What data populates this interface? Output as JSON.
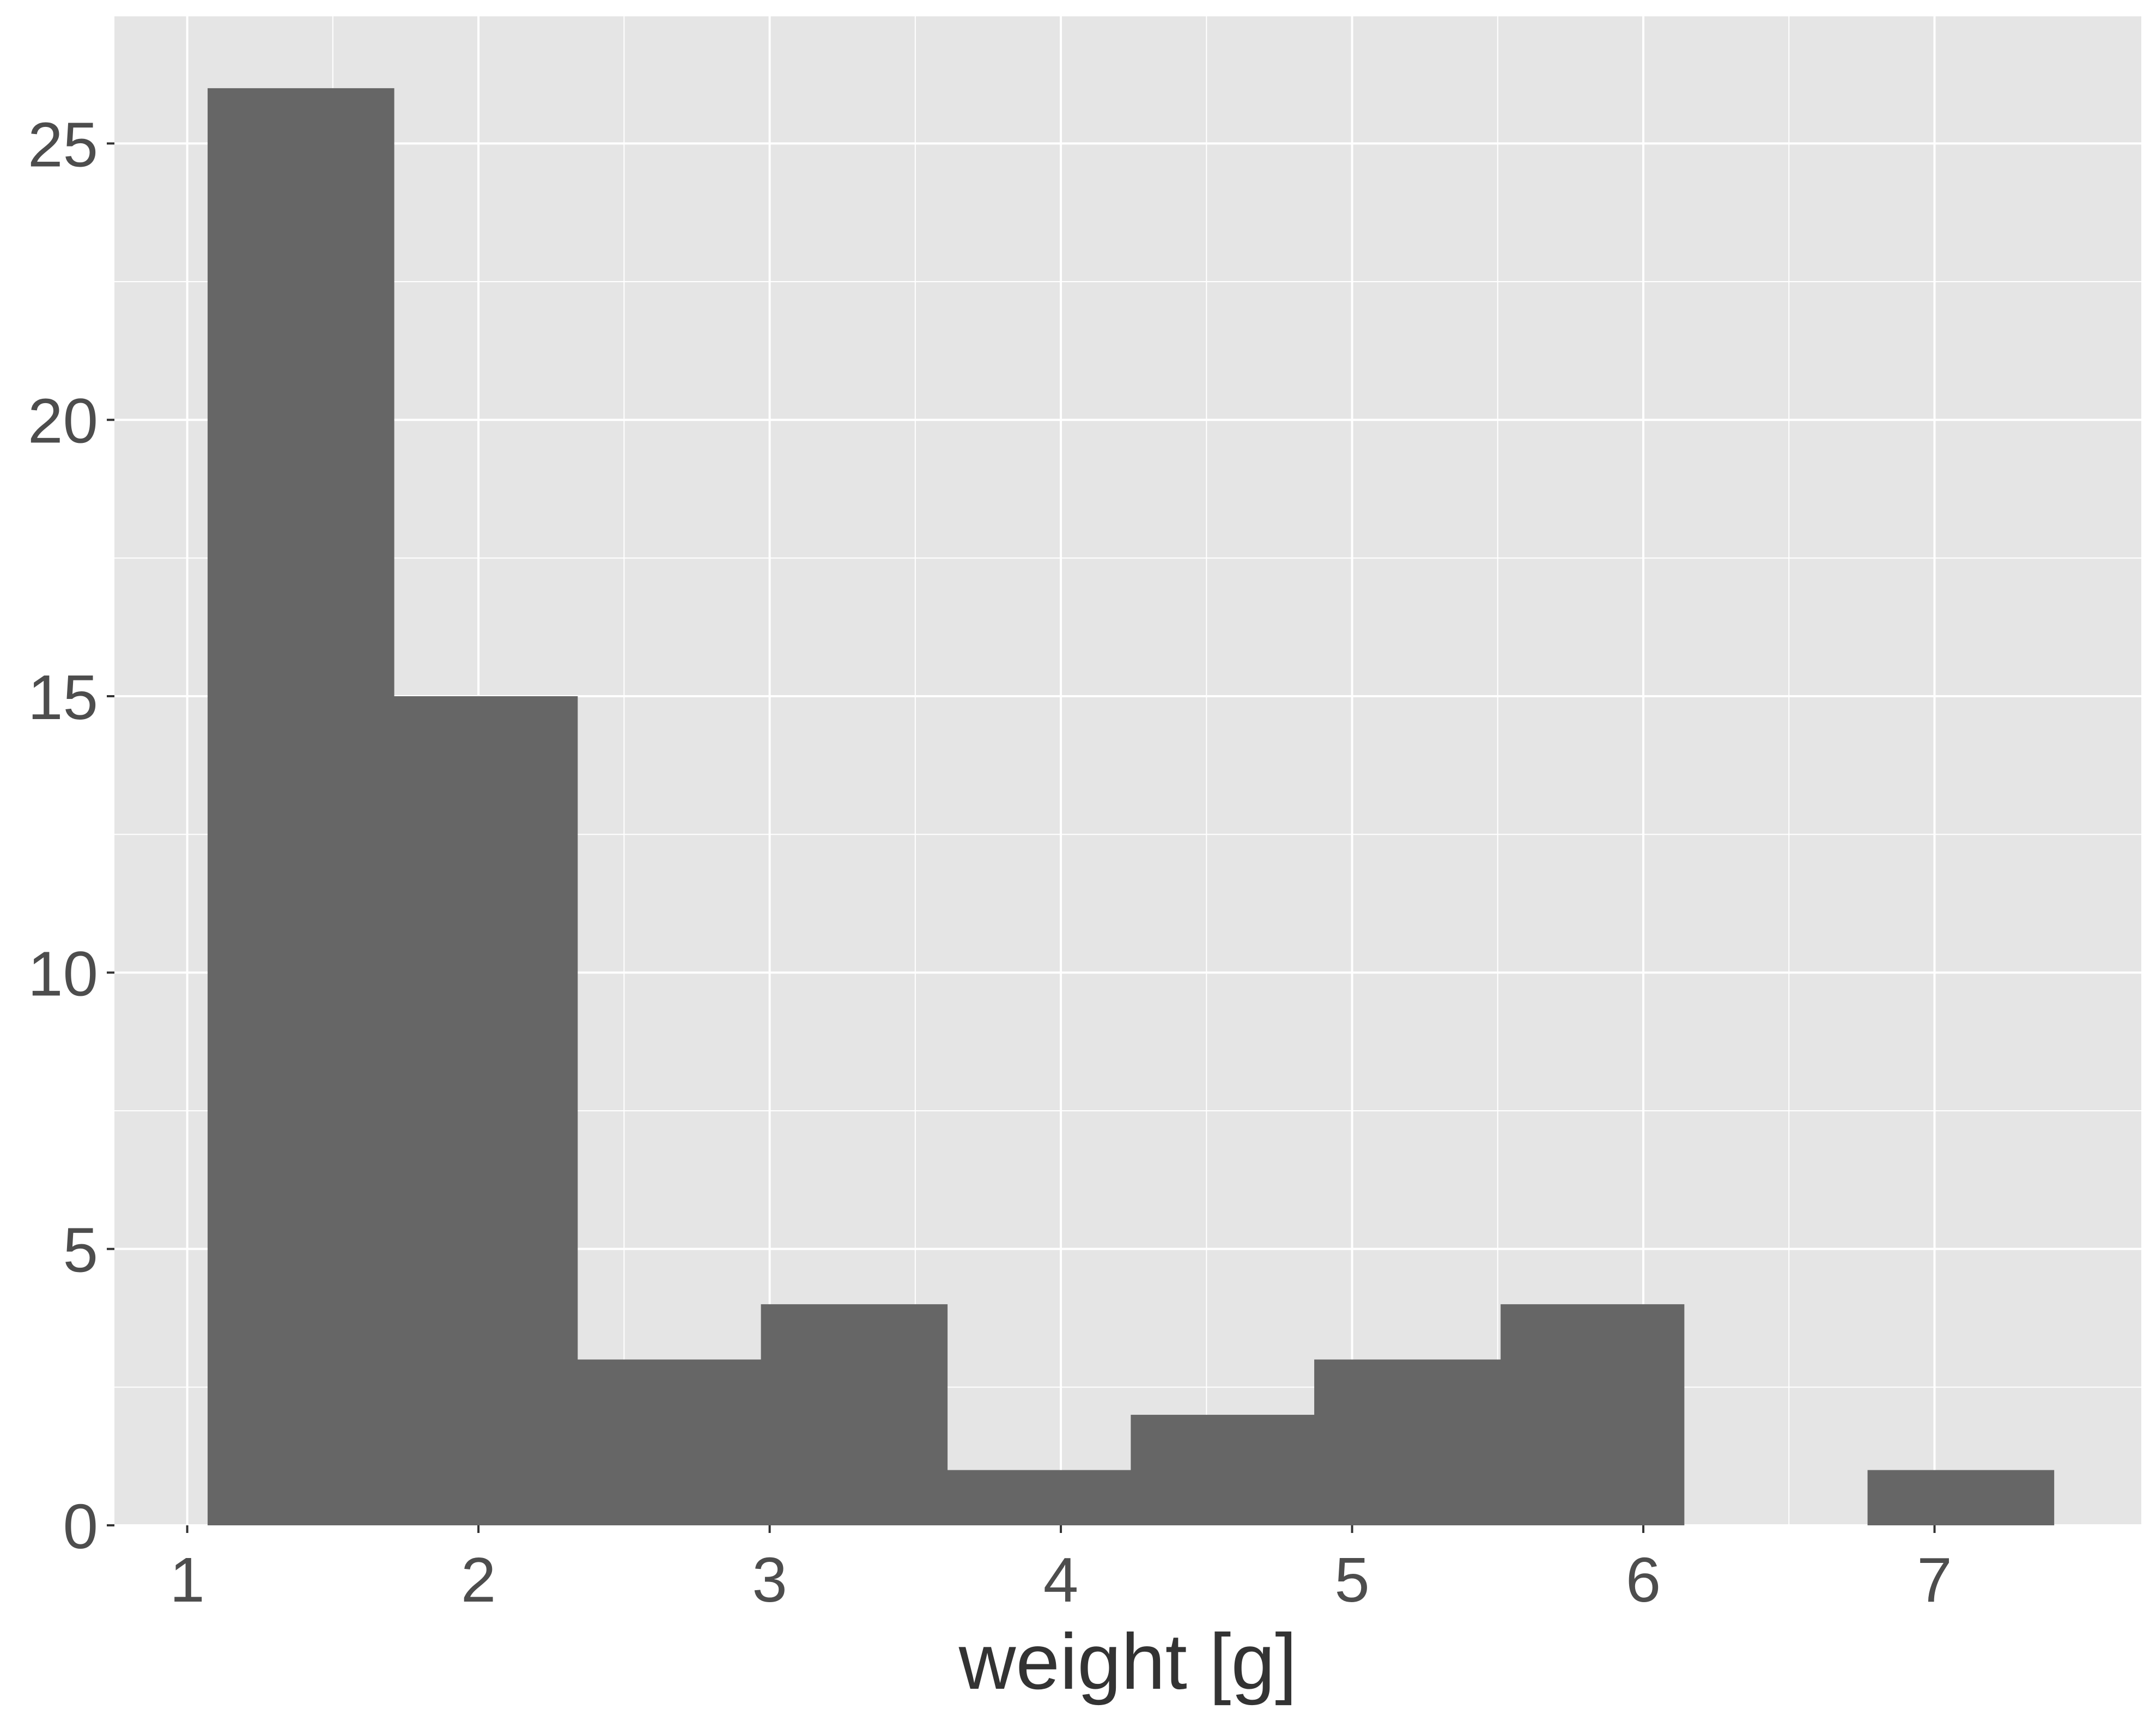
{
  "chart_data": {
    "type": "bar",
    "title": "",
    "xlabel": "weight [g]",
    "ylabel": "",
    "x_range": [
      0.75,
      7.71
    ],
    "ylim": [
      0,
      27.3
    ],
    "x_ticks": [
      1,
      2,
      3,
      4,
      5,
      6,
      7
    ],
    "y_ticks": [
      0,
      5,
      10,
      15,
      20,
      25
    ],
    "bins": [
      {
        "x0": 1.07,
        "x1": 1.71,
        "count": 26
      },
      {
        "x0": 1.71,
        "x1": 2.34,
        "count": 15
      },
      {
        "x0": 2.34,
        "x1": 2.97,
        "count": 3
      },
      {
        "x0": 2.97,
        "x1": 3.61,
        "count": 4
      },
      {
        "x0": 3.61,
        "x1": 4.24,
        "count": 1
      },
      {
        "x0": 4.24,
        "x1": 4.87,
        "count": 2
      },
      {
        "x0": 4.87,
        "x1": 5.51,
        "count": 3
      },
      {
        "x0": 5.51,
        "x1": 6.14,
        "count": 4
      },
      {
        "x0": 6.14,
        "x1": 6.77,
        "count": 0
      },
      {
        "x0": 6.77,
        "x1": 7.41,
        "count": 1
      }
    ],
    "grid": true,
    "legend": "none",
    "colors": {
      "panel": "#e5e5e5",
      "grid": "#ffffff",
      "bar": "#666666",
      "text": "#4d4d4d",
      "title": "#333333"
    }
  }
}
